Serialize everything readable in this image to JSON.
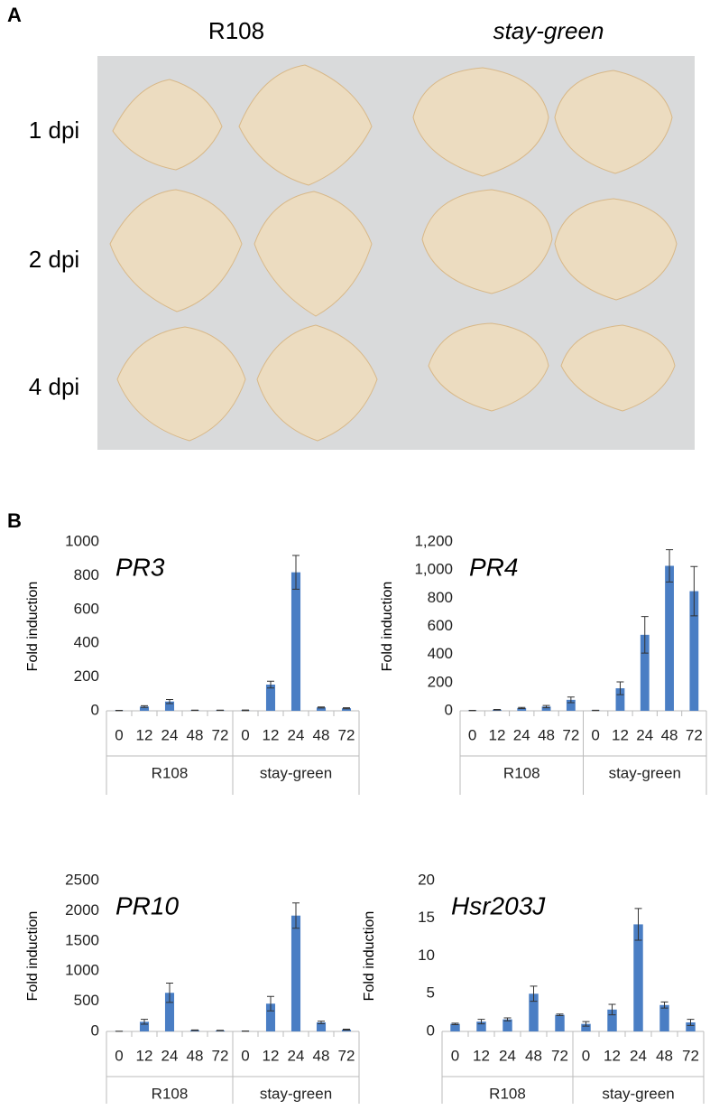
{
  "panels": {
    "a": "A",
    "b": "B"
  },
  "photo": {
    "columns": [
      "R108",
      "stay-green"
    ],
    "rows": [
      "1 dpi",
      "2 dpi",
      "4 dpi"
    ]
  },
  "chart_data": [
    {
      "type": "bar",
      "title": "PR3",
      "ylabel": "Fold induction",
      "color": "#4a7ec4",
      "ylim": [
        0,
        1000
      ],
      "yticks": [
        0,
        200,
        400,
        600,
        800,
        1000
      ],
      "groups": [
        {
          "name": "R108",
          "categories": [
            "0",
            "12",
            "24",
            "48",
            "72"
          ],
          "values": [
            2,
            25,
            55,
            3,
            3
          ],
          "errors": [
            1,
            5,
            12,
            1,
            1
          ]
        },
        {
          "name": "stay-green",
          "categories": [
            "0",
            "12",
            "24",
            "48",
            "72"
          ],
          "values": [
            3,
            155,
            820,
            20,
            15
          ],
          "errors": [
            2,
            20,
            100,
            3,
            3
          ]
        }
      ]
    },
    {
      "type": "bar",
      "title": "PR4",
      "ylabel": "Fold induction",
      "color": "#4a7ec4",
      "ylim": [
        0,
        1200
      ],
      "yticks": [
        0,
        200,
        400,
        600,
        800,
        {
          "value": 1000,
          "label": "1,000"
        },
        {
          "value": 1200,
          "label": "1,200"
        }
      ],
      "groups": [
        {
          "name": "R108",
          "categories": [
            "0",
            "12",
            "24",
            "48",
            "72"
          ],
          "values": [
            2,
            8,
            20,
            30,
            78
          ],
          "errors": [
            1,
            2,
            4,
            8,
            20
          ]
        },
        {
          "name": "stay-green",
          "categories": [
            "0",
            "12",
            "24",
            "48",
            "72"
          ],
          "values": [
            3,
            160,
            540,
            1030,
            850
          ],
          "errors": [
            1,
            45,
            130,
            115,
            175
          ]
        }
      ]
    },
    {
      "type": "bar",
      "title": "PR10",
      "ylabel": "Fold induction",
      "color": "#4a7ec4",
      "ylim": [
        0,
        2500
      ],
      "yticks": [
        0,
        500,
        1000,
        1500,
        2000,
        2500
      ],
      "groups": [
        {
          "name": "R108",
          "categories": [
            "0",
            "12",
            "24",
            "48",
            "72"
          ],
          "values": [
            3,
            160,
            640,
            20,
            15
          ],
          "errors": [
            1,
            40,
            160,
            5,
            4
          ]
        },
        {
          "name": "stay-green",
          "categories": [
            "0",
            "12",
            "24",
            "48",
            "72"
          ],
          "values": [
            5,
            460,
            1920,
            150,
            30
          ],
          "errors": [
            2,
            120,
            210,
            20,
            8
          ]
        }
      ]
    },
    {
      "type": "bar",
      "title": "Hsr203J",
      "ylabel": "Fold induction",
      "color": "#4a7ec4",
      "ylim": [
        0,
        20
      ],
      "yticks": [
        0,
        5,
        10,
        15,
        20
      ],
      "groups": [
        {
          "name": "R108",
          "categories": [
            "0",
            "12",
            "24",
            "48",
            "72"
          ],
          "values": [
            1.0,
            1.3,
            1.6,
            5.0,
            2.2
          ],
          "errors": [
            0.1,
            0.3,
            0.2,
            1.0,
            0.1
          ]
        },
        {
          "name": "stay-green",
          "categories": [
            "0",
            "12",
            "24",
            "48",
            "72"
          ],
          "values": [
            1.0,
            2.9,
            14.2,
            3.5,
            1.2
          ],
          "errors": [
            0.3,
            0.7,
            2.1,
            0.4,
            0.4
          ]
        }
      ]
    }
  ]
}
